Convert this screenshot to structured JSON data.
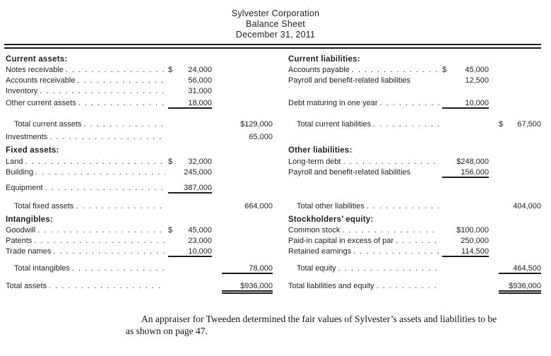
{
  "colors": {
    "ink": "#231f20"
  },
  "header": {
    "company": "Sylvester Corporation",
    "title": "Balance Sheet",
    "date": "December 31, 2011"
  },
  "statement": {
    "rows": [
      {
        "gap": 0,
        "left": {
          "label": "Current assets:",
          "style": "section"
        },
        "right": {
          "label": "Current liabilities:",
          "style": "section"
        }
      },
      {
        "gap": 0,
        "left": {
          "label": "Notes receivable",
          "dots": true,
          "v1": "$ 24,000"
        },
        "right": {
          "label": "Accounts payable",
          "dots": true,
          "v1": "$ 45,000"
        }
      },
      {
        "gap": 0,
        "left": {
          "label": "Accounts receivable",
          "dots": true,
          "v1": "56,000"
        },
        "right": {
          "label": "Payroll and benefit-related liabilities",
          "dots": false,
          "v1": "12,500"
        }
      },
      {
        "gap": 0,
        "left": {
          "label": "Inventory",
          "dots": true,
          "v1": "31,000"
        },
        "right": null
      },
      {
        "gap": 3,
        "left": {
          "label": "Other current assets",
          "dots": true,
          "v1": "18,000",
          "u1": "single"
        },
        "right": {
          "label": "Debt maturing in one year",
          "dots": true,
          "v1": "10,000",
          "u1": "single"
        }
      },
      {
        "gap": 16,
        "left": {
          "label": "Total current assets",
          "indent": true,
          "dots": true,
          "v2": "$129,000"
        },
        "right": {
          "label": "Total current liabilities",
          "indent": true,
          "dots": true,
          "v2": "$ 67,500"
        }
      },
      {
        "gap": 4,
        "left": {
          "label": "Investments",
          "dots": true,
          "v2": "65,000"
        },
        "right": null
      },
      {
        "gap": 5,
        "left": {
          "label": "Fixed assets:",
          "style": "section"
        },
        "right": {
          "label": "Other liabilities:",
          "style": "section"
        }
      },
      {
        "gap": 2,
        "left": {
          "label": "Land",
          "dots": true,
          "v1": "$ 32,000"
        },
        "right": {
          "label": "Long-term debt",
          "dots": true,
          "v1": "$248,000"
        }
      },
      {
        "gap": 0,
        "left": {
          "label": "Building",
          "dots": true,
          "v1": "245,000"
        },
        "right": {
          "label": "Payroll and benefit-related liabilities",
          "dots": false,
          "v1": "156,000",
          "u1": "single"
        }
      },
      {
        "gap": 8,
        "left": {
          "label": "Equipment",
          "dots": true,
          "v1": "387,000",
          "u1": "single"
        },
        "right": null
      },
      {
        "gap": 12,
        "left": {
          "label": "Total fixed assets",
          "indent": true,
          "dots": true,
          "v2": "664,000"
        },
        "right": {
          "label": "Total other liabilities",
          "indent": true,
          "dots": true,
          "v2": "404,000"
        }
      },
      {
        "gap": 5,
        "left": {
          "label": "Intangibles:",
          "style": "section"
        },
        "right": {
          "label": "Stockholders’ equity:",
          "style": "section"
        }
      },
      {
        "gap": 0,
        "left": {
          "label": "Goodwill",
          "dots": true,
          "v1": "$ 45,000"
        },
        "right": {
          "label": "Common stock",
          "dots": true,
          "v1": "$100,000"
        }
      },
      {
        "gap": 0,
        "left": {
          "label": "Patents",
          "dots": true,
          "v1": "23,000"
        },
        "right": {
          "label": "Paid-in capital in excess of par",
          "dots": true,
          "v1": "250,000"
        }
      },
      {
        "gap": 0,
        "left": {
          "label": "Trade names",
          "dots": true,
          "v1": "10,000",
          "u1": "single"
        },
        "right": {
          "label": "Retained earnings",
          "dots": true,
          "v1": "114,500",
          "u1": "single"
        }
      },
      {
        "gap": 10,
        "left": {
          "label": "Total intangibles",
          "indent": true,
          "dots": true,
          "v2": "78,000",
          "u2": "single"
        },
        "right": {
          "label": "Total equity",
          "indent": true,
          "dots": true,
          "v2": "464,500",
          "u2": "single"
        }
      },
      {
        "gap": 11,
        "left": {
          "label": "Total assets",
          "dots": true,
          "v2": "$936,000",
          "u2": "double"
        },
        "right": {
          "label": "Total liabilities and equity",
          "dots": true,
          "v2": "$936,000",
          "u2": "double"
        }
      }
    ]
  },
  "footnote": {
    "line1": "An appraiser for Tweeden determined the fair values of Sylvester’s assets and liabilities to be",
    "line2": "as shown on page 47."
  }
}
